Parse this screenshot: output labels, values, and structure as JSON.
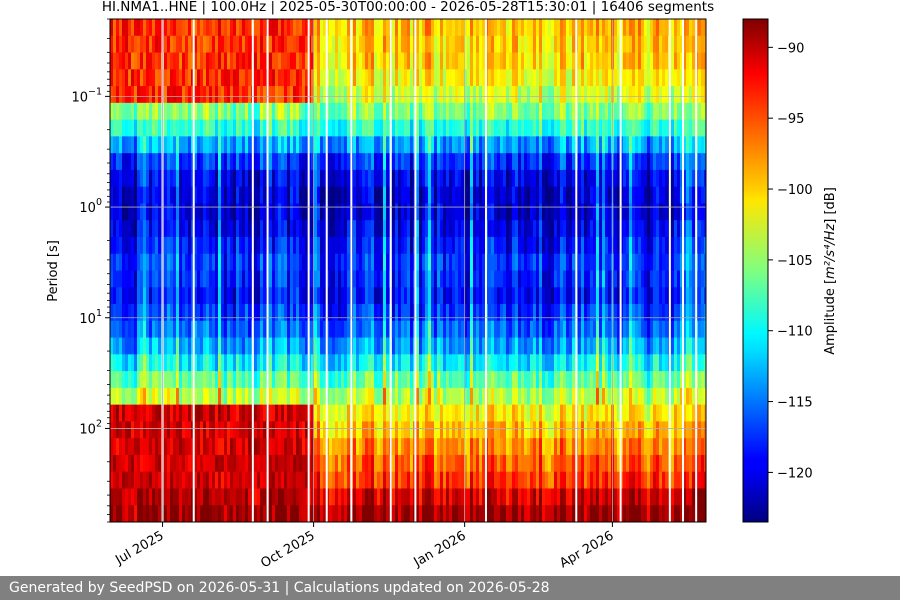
{
  "chart_data": {
    "type": "heatmap",
    "title": "HI.NMA1..HNE | 100.0Hz | 2025-05-30T00:00:00 - 2026-05-28T15:30:01 | 16406 segments",
    "xlabel": "",
    "ylabel": "Period [s]",
    "x_type": "date",
    "xlim": [
      "2025-05-30",
      "2026-05-28"
    ],
    "x_ticks": [
      {
        "date": "2025-07-01",
        "label": "Jul 2025"
      },
      {
        "date": "2025-10-01",
        "label": "Oct 2025"
      },
      {
        "date": "2026-01-01",
        "label": "Jan 2026"
      },
      {
        "date": "2026-04-01",
        "label": "Apr 2026"
      }
    ],
    "y_scale": "log",
    "y_inverted": true,
    "ylim": [
      0.02,
      700
    ],
    "y_ticks": [
      {
        "value": 0.1,
        "base": "10",
        "exp": "−1"
      },
      {
        "value": 1,
        "base": "10",
        "exp": "0"
      },
      {
        "value": 10,
        "base": "10",
        "exp": "1"
      },
      {
        "value": 100,
        "base": "10",
        "exp": "2"
      }
    ],
    "grid": true,
    "colormap": "jet",
    "colorbar": {
      "label_prefix": "Amplitude [",
      "label_math": "m²/s⁴/Hz",
      "label_suffix": "] [dB]",
      "vmin": -123.5,
      "vmax": -88,
      "ticks": [
        -90,
        -95,
        -100,
        -105,
        -110,
        -115,
        -120
      ],
      "tick_labels": [
        "−90",
        "−95",
        "−100",
        "−105",
        "−110",
        "−115",
        "−120"
      ]
    },
    "profile": [
      {
        "period": 0.02,
        "db": -99
      },
      {
        "period": 0.05,
        "db": -100
      },
      {
        "period": 0.1,
        "db": -103
      },
      {
        "period": 0.2,
        "db": -109
      },
      {
        "period": 0.35,
        "db": -117
      },
      {
        "period": 0.6,
        "db": -120
      },
      {
        "period": 1.0,
        "db": -121
      },
      {
        "period": 2.0,
        "db": -119
      },
      {
        "period": 3.5,
        "db": -117
      },
      {
        "period": 6.0,
        "db": -119
      },
      {
        "period": 10,
        "db": -117
      },
      {
        "period": 20,
        "db": -113
      },
      {
        "period": 40,
        "db": -106
      },
      {
        "period": 70,
        "db": -101
      },
      {
        "period": 150,
        "db": -97
      },
      {
        "period": 300,
        "db": -94
      },
      {
        "period": 450,
        "db": -90
      },
      {
        "period": 700,
        "db": -88
      }
    ],
    "noisy_interval": {
      "start": "2025-05-30",
      "end": "2025-09-30",
      "short_period_db": -94,
      "long_period_db": -91
    },
    "gaps": [
      "2025-07-01",
      "2025-07-20",
      "2025-08-25",
      "2025-09-03",
      "2025-09-28",
      "2025-10-09",
      "2025-10-24",
      "2025-11-17",
      "2025-12-02",
      "2026-01-14",
      "2026-03-10",
      "2026-04-06",
      "2026-05-06",
      "2026-05-14",
      "2026-05-22"
    ]
  },
  "footer": {
    "text": "Generated by SeedPSD on 2026-05-31 | Calculations updated on 2026-05-28"
  }
}
